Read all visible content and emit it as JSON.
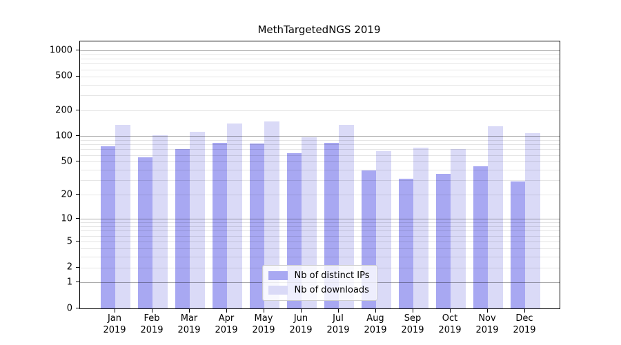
{
  "chart_data": {
    "type": "bar",
    "title": "MethTargetedNGS 2019",
    "categories": [
      "Jan",
      "Feb",
      "Mar",
      "Apr",
      "May",
      "Jun",
      "Jul",
      "Aug",
      "Sep",
      "Oct",
      "Nov",
      "Dec"
    ],
    "year": "2019",
    "series": [
      {
        "name": "Nb of distinct IPs",
        "color": "#a8a8f2",
        "values": [
          76,
          56,
          70,
          83,
          82,
          63,
          83,
          39,
          31,
          36,
          44,
          29
        ]
      },
      {
        "name": "Nb of downloads",
        "color": "#dadaf7",
        "values": [
          136,
          103,
          113,
          140,
          150,
          96,
          136,
          67,
          73,
          70,
          130,
          108
        ]
      }
    ],
    "xlabel": "",
    "ylabel": "",
    "y_axis": {
      "scale": "log1p",
      "max": 1275,
      "tick_values": [
        0,
        1,
        2,
        5,
        10,
        20,
        50,
        100,
        200,
        500,
        1000
      ],
      "tick_labels": [
        "0",
        "1",
        "2",
        "5",
        "10",
        "20",
        "50",
        "100",
        "200",
        "500",
        "1000"
      ]
    },
    "grid": {
      "major_values": [
        1,
        10,
        100,
        1000
      ],
      "minor_values": [
        2,
        3,
        4,
        5,
        6,
        7,
        8,
        9,
        20,
        30,
        40,
        50,
        60,
        70,
        80,
        90,
        200,
        300,
        400,
        500,
        600,
        700,
        800,
        900
      ],
      "drawn_above_bars": true
    },
    "legend": {
      "position": "lower center",
      "entries": [
        "Nb of distinct IPs",
        "Nb of downloads"
      ]
    },
    "style": {
      "background": "#ffffff",
      "spine_color": "#000000",
      "text_color": "#000000",
      "major_grid_color": "#ababab",
      "minor_grid_color": "#e6e6e6"
    }
  }
}
